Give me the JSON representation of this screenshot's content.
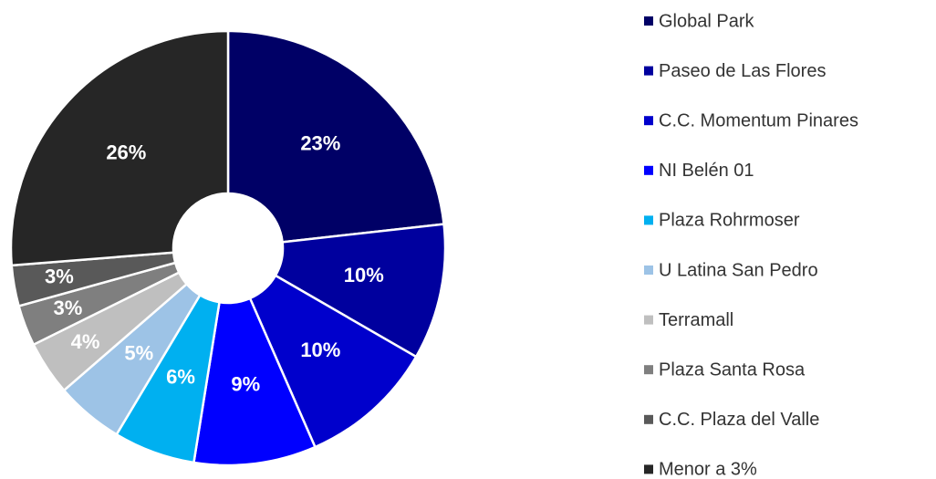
{
  "chart_data": {
    "type": "donut",
    "categories": [
      "Global Park",
      "Paseo de Las Flores",
      "C.C. Momentum Pinares",
      "NI Belén 01",
      "Plaza Rohrmoser",
      "U Latina San Pedro",
      "Terramall",
      "Plaza Santa Rosa",
      "C.C. Plaza del Valle",
      "Menor a 3%"
    ],
    "values": [
      23,
      10,
      10,
      9,
      6,
      5,
      4,
      3,
      3,
      26
    ],
    "value_labels": [
      "23%",
      "10%",
      "10%",
      "9%",
      "6%",
      "5%",
      "4%",
      "3%",
      "3%",
      "26%"
    ],
    "colors": [
      "#000066",
      "#00009e",
      "#0000cc",
      "#0000ff",
      "#00b0f0",
      "#9dc3e6",
      "#bfbfbf",
      "#7f7f7f",
      "#595959",
      "#262626"
    ],
    "legend": "right"
  }
}
